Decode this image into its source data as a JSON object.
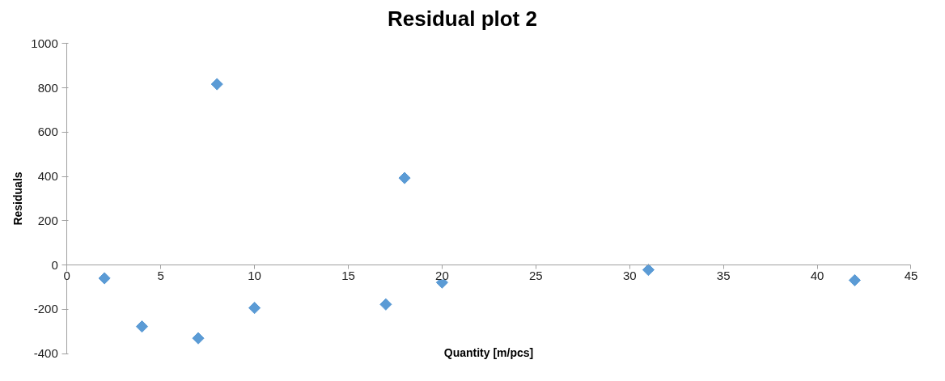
{
  "chart_data": {
    "type": "scatter",
    "title": "Residual plot 2",
    "xlabel": "Quantity [m/pcs]",
    "ylabel": "Residuals",
    "series": [
      {
        "color": "#5b9bd5",
        "x": [
          2,
          4,
          7,
          8,
          10,
          17,
          18,
          20,
          31,
          42
        ],
        "values": [
          -60,
          -278,
          -331,
          817,
          -194,
          -178,
          393,
          -79,
          -22,
          -69
        ]
      }
    ],
    "xlim": [
      0,
      45
    ],
    "xticks": [
      0,
      5,
      10,
      15,
      20,
      25,
      30,
      35,
      40,
      45
    ],
    "ylim": [
      -400,
      1000
    ],
    "yticks": [
      -400,
      -200,
      0,
      200,
      400,
      600,
      800,
      1000
    ],
    "grid": false,
    "marker": "diamond"
  }
}
